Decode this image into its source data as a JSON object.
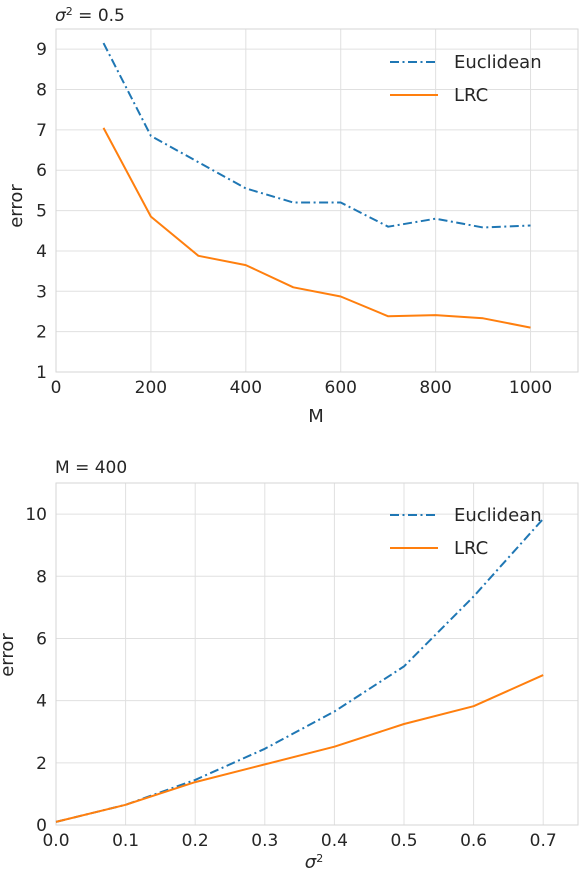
{
  "chart_data": [
    {
      "type": "line",
      "title": "σ² = 0.5",
      "title_parts": {
        "symbol": "σ",
        "sup": "2",
        "rest": " = 0.5"
      },
      "xlabel": "M",
      "ylabel": "error",
      "xlim": [
        0,
        1100
      ],
      "ylim": [
        1,
        9.5
      ],
      "xticks": [
        0,
        200,
        400,
        600,
        800,
        1000
      ],
      "yticks": [
        1,
        2,
        3,
        4,
        5,
        6,
        7,
        8,
        9
      ],
      "grid": true,
      "legend_position": "top-right",
      "x": [
        100,
        200,
        300,
        400,
        500,
        600,
        700,
        800,
        900,
        1000
      ],
      "series": [
        {
          "name": "Euclidean",
          "color": "#1f77b4",
          "style": "dashdot",
          "values": [
            9.15,
            6.85,
            6.2,
            5.55,
            5.2,
            5.2,
            4.6,
            4.8,
            4.58,
            4.63
          ]
        },
        {
          "name": "LRC",
          "color": "#ff7f0e",
          "style": "solid",
          "values": [
            7.05,
            4.85,
            3.88,
            3.65,
            3.1,
            2.87,
            2.38,
            2.41,
            2.33,
            2.1
          ]
        }
      ]
    },
    {
      "type": "line",
      "title": "M = 400",
      "xlabel": "σ²",
      "xlabel_parts": {
        "symbol": "σ",
        "sup": "2"
      },
      "ylabel": "error",
      "xlim": [
        0,
        0.75
      ],
      "ylim": [
        0,
        11
      ],
      "xticks": [
        0.0,
        0.1,
        0.2,
        0.3,
        0.4,
        0.5,
        0.6,
        0.7
      ],
      "xtick_labels": [
        "0.0",
        "0.1",
        "0.2",
        "0.3",
        "0.4",
        "0.5",
        "0.6",
        "0.7"
      ],
      "yticks": [
        0,
        2,
        4,
        6,
        8,
        10
      ],
      "grid": true,
      "legend_position": "top-right",
      "x": [
        0.0,
        0.1,
        0.2,
        0.3,
        0.4,
        0.5,
        0.6,
        0.7
      ],
      "series": [
        {
          "name": "Euclidean",
          "color": "#1f77b4",
          "style": "dashdot",
          "values": [
            0.1,
            0.65,
            1.45,
            2.45,
            3.65,
            5.1,
            7.35,
            9.85
          ]
        },
        {
          "name": "LRC",
          "color": "#ff7f0e",
          "style": "solid",
          "values": [
            0.1,
            0.65,
            1.38,
            1.95,
            2.52,
            3.25,
            3.82,
            4.82
          ]
        }
      ]
    }
  ]
}
